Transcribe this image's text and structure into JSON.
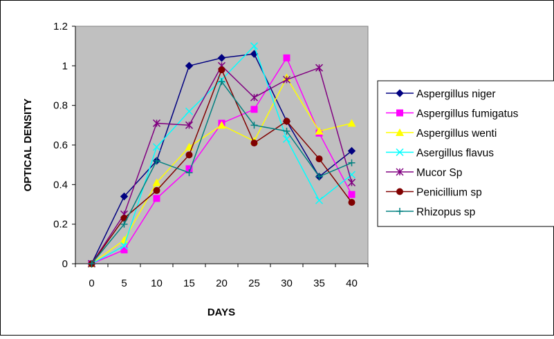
{
  "chart_data": {
    "type": "line",
    "title": "",
    "xlabel": "DAYS",
    "ylabel": "OPTICAL DENSITY",
    "x": [
      0,
      5,
      10,
      15,
      20,
      25,
      30,
      35,
      40
    ],
    "ylim": [
      0,
      1.2
    ],
    "y_ticks": [
      "0",
      "0.2",
      "0.4",
      "0.6",
      "0.8",
      "1",
      "1.2"
    ],
    "grid": false,
    "plot_background": "#c0c0c0",
    "legend_position": "right",
    "series": [
      {
        "name": "Aspergillus niger",
        "color": "#000080",
        "marker": "diamond",
        "values": [
          0,
          0.34,
          0.52,
          1.0,
          1.04,
          1.06,
          0.72,
          0.44,
          0.57
        ]
      },
      {
        "name": "Aspergillus fumigatus",
        "color": "#ff00ff",
        "marker": "square",
        "values": [
          0,
          0.07,
          0.33,
          0.48,
          0.71,
          0.78,
          1.04,
          0.66,
          0.35
        ]
      },
      {
        "name": "Aspergillus  wenti",
        "color": "#ffff00",
        "marker": "triangle",
        "values": [
          0,
          0.12,
          0.41,
          0.59,
          0.7,
          0.62,
          0.94,
          0.67,
          0.71
        ]
      },
      {
        "name": "Asergillus  flavus",
        "color": "#00ffff",
        "marker": "x",
        "values": [
          0,
          0.09,
          0.59,
          0.77,
          0.93,
          1.1,
          0.63,
          0.32,
          0.45
        ]
      },
      {
        "name": "Mucor Sp",
        "color": "#800080",
        "marker": "asterisk",
        "values": [
          0,
          0.25,
          0.71,
          0.7,
          1.0,
          0.84,
          0.93,
          0.99,
          0.41
        ]
      },
      {
        "name": "Penicillium sp",
        "color": "#800000",
        "marker": "circle",
        "values": [
          0,
          0.23,
          0.37,
          0.55,
          0.98,
          0.61,
          0.72,
          0.53,
          0.31
        ]
      },
      {
        "name": "Rhizopus sp",
        "color": "#008080",
        "marker": "plus",
        "values": [
          0,
          0.2,
          0.52,
          0.46,
          0.92,
          0.7,
          0.67,
          0.44,
          0.51
        ]
      }
    ]
  }
}
